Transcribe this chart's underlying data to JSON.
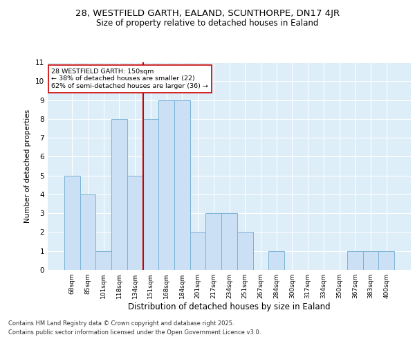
{
  "title1": "28, WESTFIELD GARTH, EALAND, SCUNTHORPE, DN17 4JR",
  "title2": "Size of property relative to detached houses in Ealand",
  "xlabel": "Distribution of detached houses by size in Ealand",
  "ylabel": "Number of detached properties",
  "categories": [
    "68sqm",
    "85sqm",
    "101sqm",
    "118sqm",
    "134sqm",
    "151sqm",
    "168sqm",
    "184sqm",
    "201sqm",
    "217sqm",
    "234sqm",
    "251sqm",
    "267sqm",
    "284sqm",
    "300sqm",
    "317sqm",
    "334sqm",
    "350sqm",
    "367sqm",
    "383sqm",
    "400sqm"
  ],
  "values": [
    5,
    4,
    1,
    8,
    5,
    8,
    9,
    9,
    2,
    3,
    3,
    2,
    0,
    1,
    0,
    0,
    0,
    0,
    1,
    1,
    1
  ],
  "bar_color": "#cce0f5",
  "bar_edge_color": "#7ab3d4",
  "red_line_index": 5,
  "annotation_title": "28 WESTFIELD GARTH: 150sqm",
  "annotation_line1": "← 38% of detached houses are smaller (22)",
  "annotation_line2": "62% of semi-detached houses are larger (36) →",
  "ylim": [
    0,
    11
  ],
  "yticks": [
    0,
    1,
    2,
    3,
    4,
    5,
    6,
    7,
    8,
    9,
    10,
    11
  ],
  "footnote1": "Contains HM Land Registry data © Crown copyright and database right 2025.",
  "footnote2": "Contains public sector information licensed under the Open Government Licence v3.0.",
  "bg_color": "#ddeef9",
  "grid_color": "#ffffff",
  "annotation_box_color": "#ffffff",
  "annotation_border_color": "#cc0000"
}
